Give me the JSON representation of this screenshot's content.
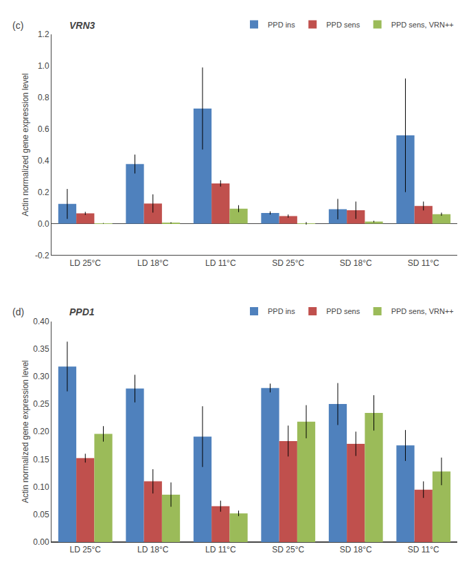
{
  "chart_data": [
    {
      "type": "bar",
      "title": "VRN3",
      "annotations": [
        "(c)"
      ],
      "ylabel": "Actin normalized gene expression level",
      "categories": [
        "LD 25°C",
        "LD 18°C",
        "LD 11°C",
        "SD 25°C",
        "SD 18°C",
        "SD 11°C"
      ],
      "series": [
        {
          "name": "PPD ins",
          "color": "#4F81BD",
          "values": [
            0.125,
            0.378,
            0.73,
            0.068,
            0.092,
            0.56
          ],
          "errors": [
            0.095,
            0.06,
            0.26,
            0.01,
            0.065,
            0.36
          ]
        },
        {
          "name": "PPD sens",
          "color": "#C0504D",
          "values": [
            0.065,
            0.128,
            0.255,
            0.048,
            0.085,
            0.112
          ],
          "errors": [
            0.01,
            0.058,
            0.02,
            0.01,
            0.055,
            0.028
          ]
        },
        {
          "name": "PPD sens, VRN++",
          "color": "#9BBB59",
          "values": [
            0.002,
            0.005,
            0.095,
            0.002,
            0.013,
            0.06
          ],
          "errors": [
            0.002,
            0.004,
            0.022,
            0.008,
            0.005,
            0.01
          ]
        }
      ],
      "ylim": [
        -0.2,
        1.2
      ],
      "yticks": [
        -0.2,
        {
          "value": 0.0,
          "label": "0.0"
        },
        0.2,
        0.4,
        0.6,
        0.8,
        {
          "value": 1.0,
          "label": "1.0"
        },
        1.2
      ],
      "grid": false,
      "legend": "upper right"
    },
    {
      "type": "bar",
      "title": "PPD1",
      "annotations": [
        "(d)"
      ],
      "ylabel": "Actin normalized gene expression level",
      "categories": [
        "LD 25°C",
        "LD 18°C",
        "LD 11°C",
        "SD 25°C",
        "SD 18°C",
        "SD 11°C"
      ],
      "series": [
        {
          "name": "PPD ins",
          "color": "#4F81BD",
          "values": [
            0.318,
            0.278,
            0.191,
            0.279,
            0.25,
            0.175
          ],
          "errors": [
            0.045,
            0.025,
            0.055,
            0.008,
            0.038,
            0.028
          ]
        },
        {
          "name": "PPD sens",
          "color": "#C0504D",
          "values": [
            0.152,
            0.11,
            0.065,
            0.183,
            0.178,
            0.095
          ],
          "errors": [
            0.008,
            0.022,
            0.01,
            0.028,
            0.022,
            0.015
          ]
        },
        {
          "name": "PPD sens, VRN++",
          "color": "#9BBB59",
          "values": [
            0.196,
            0.086,
            0.052,
            0.218,
            0.234,
            0.128
          ],
          "errors": [
            0.014,
            0.022,
            0.005,
            0.03,
            0.032,
            0.025
          ]
        }
      ],
      "ylim": [
        0,
        0.4
      ],
      "yticks": [
        {
          "value": 0.0,
          "label": "0.00"
        },
        0.05,
        {
          "value": 0.1,
          "label": "0.10"
        },
        0.15,
        {
          "value": 0.2,
          "label": "0.20"
        },
        0.25,
        {
          "value": 0.3,
          "label": "0.30"
        },
        0.35,
        {
          "value": 0.4,
          "label": "0.40"
        }
      ],
      "grid": false,
      "legend": "upper right"
    }
  ]
}
